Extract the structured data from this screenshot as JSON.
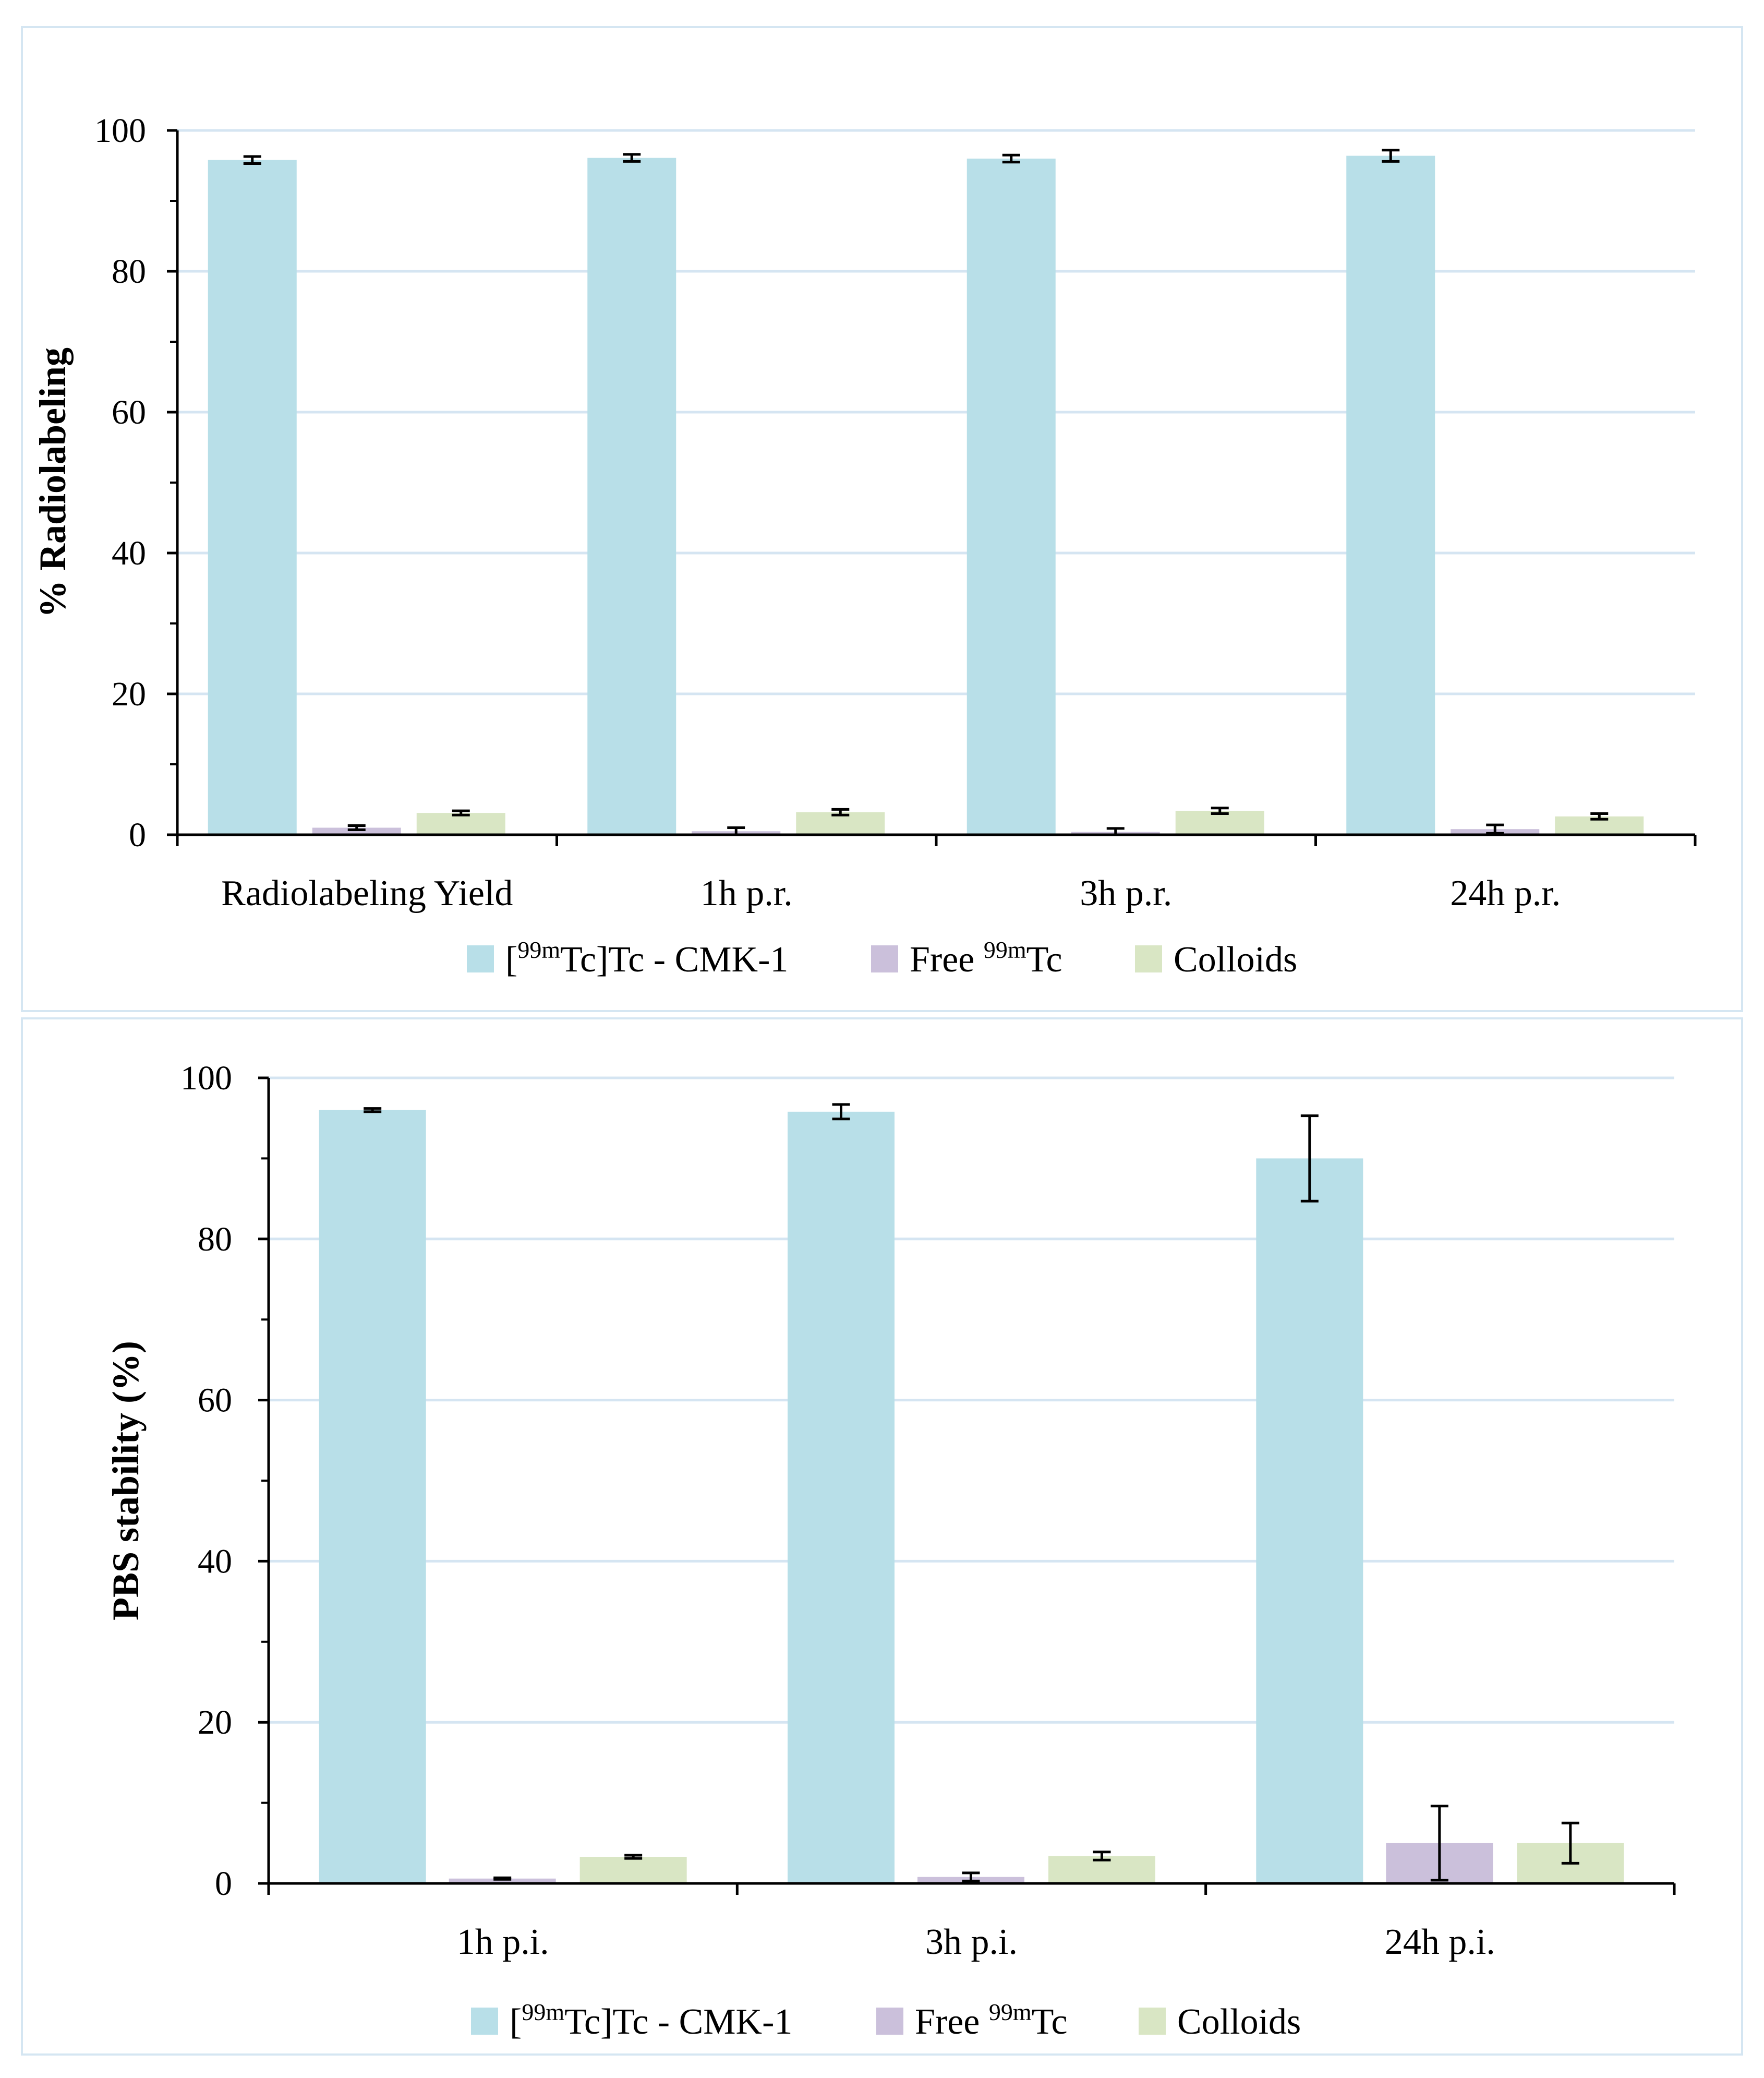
{
  "chart_data": [
    {
      "type": "bar",
      "ylabel": "% Radiolabeling",
      "ylim": [
        0,
        100
      ],
      "yticks": [
        0,
        20,
        40,
        60,
        80,
        100
      ],
      "grid": true,
      "legend_position": "bottom",
      "categories": [
        "Radiolabeling Yield",
        "1h p.r.",
        "3h p.r.",
        "24h p.r."
      ],
      "series": [
        {
          "name": "[99mTc]Tc - CMK-1",
          "color": "#b8dfe8",
          "values": [
            95.8,
            96.1,
            96.0,
            96.4
          ],
          "errors": [
            0.5,
            0.5,
            0.5,
            0.8
          ]
        },
        {
          "name": "Free 99mTc",
          "color": "#cbc0db",
          "values": [
            1.0,
            0.5,
            0.4,
            0.8
          ],
          "errors": [
            0.3,
            0.5,
            0.5,
            0.6
          ]
        },
        {
          "name": "Colloids",
          "color": "#d9e6c4",
          "values": [
            3.1,
            3.2,
            3.4,
            2.6
          ],
          "errors": [
            0.3,
            0.4,
            0.4,
            0.4
          ]
        }
      ]
    },
    {
      "type": "bar",
      "ylabel": "PBS stability (%)",
      "ylim": [
        0,
        100
      ],
      "yticks": [
        0,
        20,
        40,
        60,
        80,
        100
      ],
      "grid": true,
      "legend_position": "bottom",
      "categories": [
        "1h p.i.",
        "3h p.i.",
        "24h p.i."
      ],
      "series": [
        {
          "name": "[99mTc]Tc - CMK-1",
          "color": "#b8dfe8",
          "values": [
            96.0,
            95.8,
            90.0
          ],
          "errors": [
            0.2,
            0.9,
            5.3
          ]
        },
        {
          "name": "Free 99mTc",
          "color": "#cbc0db",
          "values": [
            0.6,
            0.8,
            5.0
          ],
          "errors": [
            0.1,
            0.5,
            4.6
          ]
        },
        {
          "name": "Colloids",
          "color": "#d9e6c4",
          "values": [
            3.3,
            3.4,
            5.0
          ],
          "errors": [
            0.2,
            0.5,
            2.5
          ]
        }
      ]
    }
  ],
  "legend": {
    "entries": [
      {
        "prefix": "[",
        "sup": "99m",
        "text": "Tc]Tc - CMK-1",
        "color": "#b8dfe8"
      },
      {
        "prefix": "Free ",
        "sup": "99m",
        "text": "Tc",
        "color": "#cbc0db"
      },
      {
        "prefix": "Colloids",
        "sup": "",
        "text": "",
        "color": "#d9e6c4"
      }
    ]
  }
}
